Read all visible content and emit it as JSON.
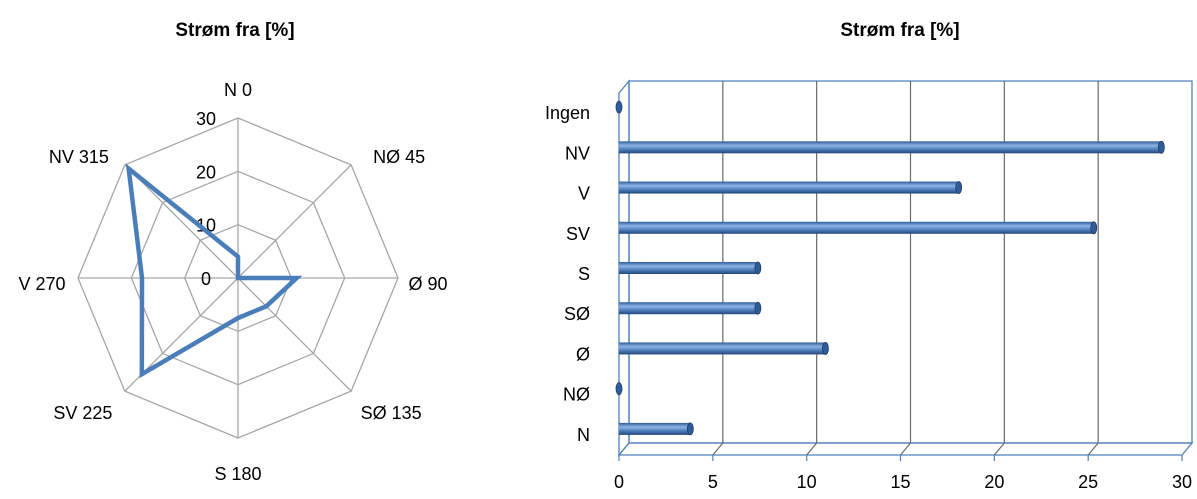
{
  "chart_data": [
    {
      "type": "radar",
      "title": "Strøm fra [%]",
      "categories": [
        "N 0",
        "NØ 45",
        "Ø 90",
        "SØ 135",
        "S 180",
        "SV 225",
        "V 270",
        "NV 315"
      ],
      "series": [
        {
          "values": [
            4,
            0,
            11,
            7.5,
            7.5,
            25.5,
            18,
            29
          ]
        }
      ],
      "rlim": [
        0,
        30
      ],
      "rticks": [
        "0",
        "10",
        "20",
        "30"
      ],
      "line_color": "#4a7ebb",
      "grid_color": "#a6a6a6"
    },
    {
      "type": "bar",
      "orientation": "horizontal",
      "title": "Strøm fra [%]",
      "categories": [
        "N",
        "NØ",
        "Ø",
        "SØ",
        "S",
        "SV",
        "V",
        "NV",
        "Ingen"
      ],
      "values": [
        3.8,
        0,
        11,
        7.4,
        7.4,
        25.3,
        18.1,
        28.9,
        0
      ],
      "xlim": [
        0,
        30
      ],
      "xticks": [
        "0",
        "5",
        "10",
        "15",
        "20",
        "25",
        "30"
      ],
      "bar_color": "#4f81bd",
      "frame_color": "#4f81bd"
    }
  ]
}
